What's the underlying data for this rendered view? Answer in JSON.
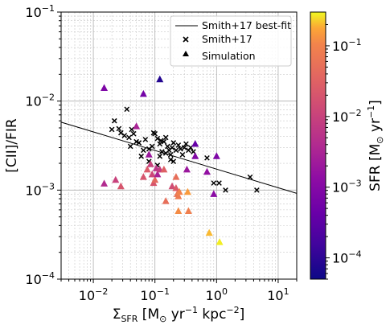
{
  "chart_data": {
    "type": "scatter",
    "x_scale": "log",
    "y_scale": "log",
    "xlim": [
      0.003,
      20
    ],
    "ylim": [
      0.0001,
      0.1
    ],
    "grid": true,
    "legend_position": "top-right",
    "xlabel": {
      "main": "Σ",
      "sub": "SFR",
      "rest": " [M",
      "odot": "⊙",
      "unit": " yr",
      "exp1": "−1",
      "unit2": " kpc",
      "exp2": "−2",
      "close": "]"
    },
    "ylabel": "[CII]/FIR",
    "xticks": [
      {
        "value": 0.01,
        "base": "10",
        "exp": "−2"
      },
      {
        "value": 0.1,
        "base": "10",
        "exp": "−1"
      },
      {
        "value": 1,
        "base": "10",
        "exp": "0"
      },
      {
        "value": 10,
        "base": "10",
        "exp": "1"
      }
    ],
    "yticks": [
      {
        "value": 0.0001,
        "base": "10",
        "exp": "−4"
      },
      {
        "value": 0.001,
        "base": "10",
        "exp": "−3"
      },
      {
        "value": 0.01,
        "base": "10",
        "exp": "−2"
      },
      {
        "value": 0.1,
        "base": "10",
        "exp": "−1"
      }
    ],
    "legend": [
      {
        "label": "Smith+17 best-fit",
        "marker": "line"
      },
      {
        "label": "Smith+17",
        "marker": "x"
      },
      {
        "label": "Simulation",
        "marker": "triangle"
      }
    ],
    "best_fit_line": {
      "x": [
        0.003,
        20
      ],
      "y": [
        0.0058,
        0.00092
      ]
    },
    "series": [
      {
        "name": "Smith+17",
        "marker": "x",
        "points": [
          [
            0.035,
            0.0081
          ],
          [
            0.02,
            0.0048
          ],
          [
            0.026,
            0.0049
          ],
          [
            0.022,
            0.006
          ],
          [
            0.028,
            0.0044
          ],
          [
            0.032,
            0.0041
          ],
          [
            0.038,
            0.0039
          ],
          [
            0.042,
            0.0048
          ],
          [
            0.045,
            0.0043
          ],
          [
            0.05,
            0.0035
          ],
          [
            0.055,
            0.0034
          ],
          [
            0.04,
            0.0031
          ],
          [
            0.065,
            0.0028
          ],
          [
            0.07,
            0.0037
          ],
          [
            0.08,
            0.0029
          ],
          [
            0.09,
            0.0031
          ],
          [
            0.095,
            0.0044
          ],
          [
            0.1,
            0.0043
          ],
          [
            0.11,
            0.0038
          ],
          [
            0.12,
            0.0033
          ],
          [
            0.125,
            0.0036
          ],
          [
            0.13,
            0.0027
          ],
          [
            0.14,
            0.0035
          ],
          [
            0.15,
            0.0039
          ],
          [
            0.16,
            0.0031
          ],
          [
            0.17,
            0.0028
          ],
          [
            0.18,
            0.0025
          ],
          [
            0.19,
            0.003
          ],
          [
            0.2,
            0.0034
          ],
          [
            0.22,
            0.0028
          ],
          [
            0.24,
            0.0032
          ],
          [
            0.26,
            0.0029
          ],
          [
            0.28,
            0.0025
          ],
          [
            0.3,
            0.003
          ],
          [
            0.32,
            0.0033
          ],
          [
            0.35,
            0.0028
          ],
          [
            0.38,
            0.003
          ],
          [
            0.42,
            0.0027
          ],
          [
            0.12,
            0.0024
          ],
          [
            0.15,
            0.0026
          ],
          [
            0.18,
            0.0022
          ],
          [
            0.2,
            0.0021
          ],
          [
            0.06,
            0.0024
          ],
          [
            0.08,
            0.0021
          ],
          [
            0.11,
            0.0019
          ],
          [
            0.7,
            0.0023
          ],
          [
            0.9,
            0.0012
          ],
          [
            1.1,
            0.0012
          ],
          [
            1.4,
            0.001
          ],
          [
            3.5,
            0.0014
          ],
          [
            4.5,
            0.001
          ]
        ]
      },
      {
        "name": "Simulation",
        "marker": "triangle",
        "colorbar_label": {
          "main": "SFR [M",
          "odot": "⊙",
          "unit": " yr",
          "exp": "−1",
          "close": "]"
        },
        "colorbar_range": [
          5e-05,
          0.3
        ],
        "colorbar_ticks": [
          {
            "value": 0.0001,
            "base": "10",
            "exp": "−4"
          },
          {
            "value": 0.001,
            "base": "10",
            "exp": "−3"
          },
          {
            "value": 0.01,
            "base": "10",
            "exp": "−2"
          },
          {
            "value": 0.1,
            "base": "10",
            "exp": "−1"
          }
        ],
        "colormap": "plasma",
        "points": [
          {
            "x": 0.015,
            "y": 0.014,
            "c": 0.0008
          },
          {
            "x": 0.065,
            "y": 0.012,
            "c": 0.0006
          },
          {
            "x": 0.12,
            "y": 0.0175,
            "c": 8e-05
          },
          {
            "x": 0.05,
            "y": 0.0052,
            "c": 0.003
          },
          {
            "x": 0.45,
            "y": 0.0033,
            "c": 0.0004
          },
          {
            "x": 0.45,
            "y": 0.0024,
            "c": 0.0009
          },
          {
            "x": 0.7,
            "y": 0.0016,
            "c": 0.0015
          },
          {
            "x": 1.0,
            "y": 0.0024,
            "c": 0.0008
          },
          {
            "x": 0.9,
            "y": 0.0009,
            "c": 0.0012
          },
          {
            "x": 0.33,
            "y": 0.0017,
            "c": 0.002
          },
          {
            "x": 0.015,
            "y": 0.00118,
            "c": 0.004
          },
          {
            "x": 0.023,
            "y": 0.0013,
            "c": 0.01
          },
          {
            "x": 0.028,
            "y": 0.0011,
            "c": 0.02
          },
          {
            "x": 0.065,
            "y": 0.0014,
            "c": 0.02
          },
          {
            "x": 0.075,
            "y": 0.0017,
            "c": 0.025
          },
          {
            "x": 0.08,
            "y": 0.0025,
            "c": 0.002
          },
          {
            "x": 0.085,
            "y": 0.00195,
            "c": 0.01
          },
          {
            "x": 0.09,
            "y": 0.0015,
            "c": 0.012
          },
          {
            "x": 0.095,
            "y": 0.0012,
            "c": 0.02
          },
          {
            "x": 0.1,
            "y": 0.0013,
            "c": 0.04
          },
          {
            "x": 0.105,
            "y": 0.00175,
            "c": 0.006
          },
          {
            "x": 0.11,
            "y": 0.0015,
            "c": 0.003
          },
          {
            "x": 0.12,
            "y": 0.0017,
            "c": 0.008
          },
          {
            "x": 0.14,
            "y": 0.0017,
            "c": 0.03
          },
          {
            "x": 0.15,
            "y": 0.00075,
            "c": 0.05
          },
          {
            "x": 0.19,
            "y": 0.0011,
            "c": 0.015
          },
          {
            "x": 0.22,
            "y": 0.0014,
            "c": 0.05
          },
          {
            "x": 0.22,
            "y": 0.00105,
            "c": 0.025
          },
          {
            "x": 0.23,
            "y": 0.0009,
            "c": 0.06
          },
          {
            "x": 0.24,
            "y": 0.00085,
            "c": 0.08
          },
          {
            "x": 0.25,
            "y": 0.00095,
            "c": 0.1
          },
          {
            "x": 0.24,
            "y": 0.00058,
            "c": 0.12
          },
          {
            "x": 0.34,
            "y": 0.00095,
            "c": 0.15
          },
          {
            "x": 0.35,
            "y": 0.00058,
            "c": 0.09
          },
          {
            "x": 0.76,
            "y": 0.00033,
            "c": 0.2
          },
          {
            "x": 1.12,
            "y": 0.00026,
            "c": 0.28
          }
        ]
      }
    ]
  }
}
